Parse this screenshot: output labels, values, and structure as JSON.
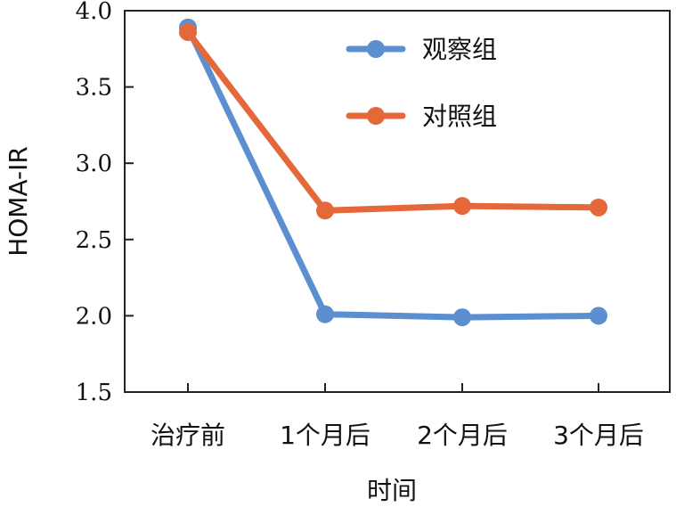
{
  "chart_data": {
    "type": "line",
    "categories": [
      "治疗前",
      "1个月后",
      "2个月后",
      "3个月后"
    ],
    "series": [
      {
        "name": "观察组",
        "values": [
          3.89,
          2.01,
          1.99,
          2.0
        ],
        "color": "#5b8fd0"
      },
      {
        "name": "对照组",
        "values": [
          3.86,
          2.69,
          2.72,
          2.71
        ],
        "color": "#e4683a"
      }
    ],
    "title": "",
    "xlabel": "时间",
    "ylabel": "HOMA-IR",
    "ylim": [
      1.5,
      4.0
    ],
    "yticks": [
      "1.5",
      "2.0",
      "2.5",
      "3.0",
      "3.5",
      "4.0"
    ],
    "grid": false,
    "legend_position": "top-right"
  }
}
